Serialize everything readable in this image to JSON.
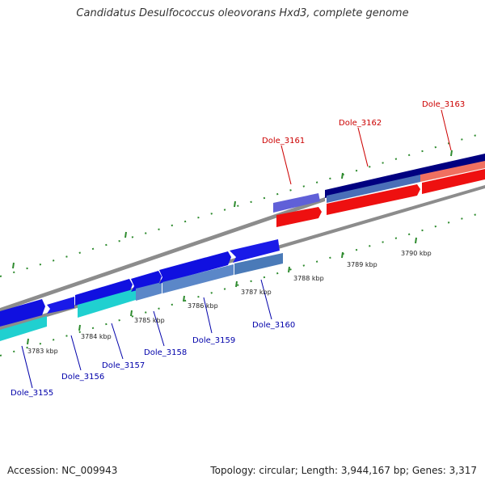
{
  "title": "Candidatus Desulfococcus oleovorans Hxd3, complete genome",
  "footer": {
    "accession": "Accession: NC_009943",
    "summary": "Topology: circular; Length: 3,944,167 bp; Genes: 3,317"
  },
  "colors": {
    "backbone": "#8c8c8c",
    "tick": "#2e8b2e",
    "label_top": "#cc0000",
    "label_bottom": "#0000aa"
  },
  "kbp_labels": [
    "3783 kbp",
    "3784 kbp",
    "3785 kbp",
    "3786 kbp",
    "3787 kbp",
    "3788 kbp",
    "3789 kbp",
    "3790 kbp"
  ],
  "genes": [
    {
      "id": "Dole_3155"
    },
    {
      "id": "Dole_3156"
    },
    {
      "id": "Dole_3157"
    },
    {
      "id": "Dole_3158"
    },
    {
      "id": "Dole_3159"
    },
    {
      "id": "Dole_3160"
    },
    {
      "id": "Dole_3161"
    },
    {
      "id": "Dole_3162"
    },
    {
      "id": "Dole_3163"
    }
  ]
}
